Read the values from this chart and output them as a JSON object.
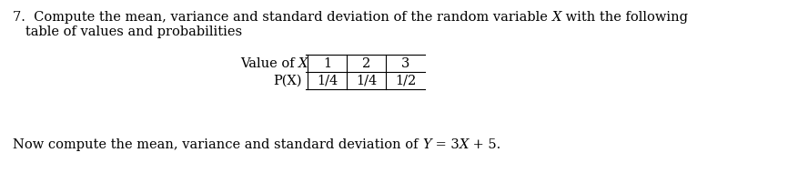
{
  "background_color": "#ffffff",
  "text_color": "#000000",
  "fontsize": 10.5,
  "line1_pre": "7.  Compute the mean, variance and standard deviation of the random variable ",
  "line1_X": "X",
  "line1_post": " with the following",
  "line2": "   table of values and probabilities",
  "table_header_pre": "Value of ",
  "table_header_X": "X",
  "table_cols": [
    "1",
    "2",
    "3"
  ],
  "table_row_label": "P(X)",
  "table_row_vals": [
    "1/4",
    "1/4",
    "1/2"
  ],
  "bot_pre": "Now compute the mean, variance and standard deviation of ",
  "bot_Y": "Y",
  "bot_mid": " = 3",
  "bot_X": "X",
  "bot_post": " + 5.",
  "fig_w": 8.77,
  "fig_h": 1.9,
  "dpi": 100
}
